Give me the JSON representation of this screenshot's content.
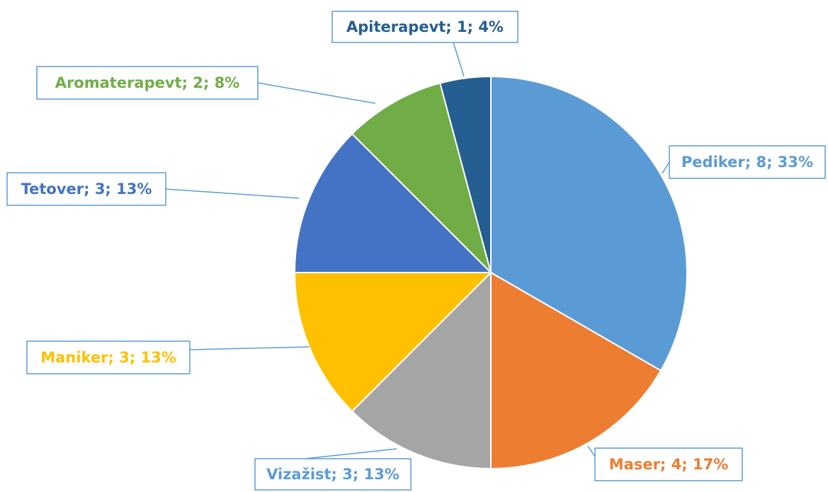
{
  "chart_data": {
    "type": "pie",
    "categories": [
      "Pediker",
      "Maser",
      "Vizažist",
      "Maniker",
      "Tetover",
      "Aromaterapevt",
      "Apiterapevt"
    ],
    "values": [
      8,
      4,
      3,
      3,
      3,
      2,
      1
    ],
    "value_labels": [
      "Pediker; 8; 33%",
      "Maser; 4; 17%",
      "Vizažist; 3; 13%",
      "Maniker; 3; 13%",
      "Tetover; 3; 13%",
      "Aromaterapevt; 2; 8%",
      "Apiterapevt; 1; 4%"
    ],
    "colors": [
      "#5b9bd5",
      "#ed7d31",
      "#a5a5a5",
      "#ffc000",
      "#4472c4",
      "#70ad47",
      "#255e91"
    ],
    "label_colors": [
      "#5b9bd5",
      "#ed7d31",
      "#5b9bd5",
      "#ffc000",
      "#4472c4",
      "#70ad47",
      "#255e91"
    ]
  }
}
